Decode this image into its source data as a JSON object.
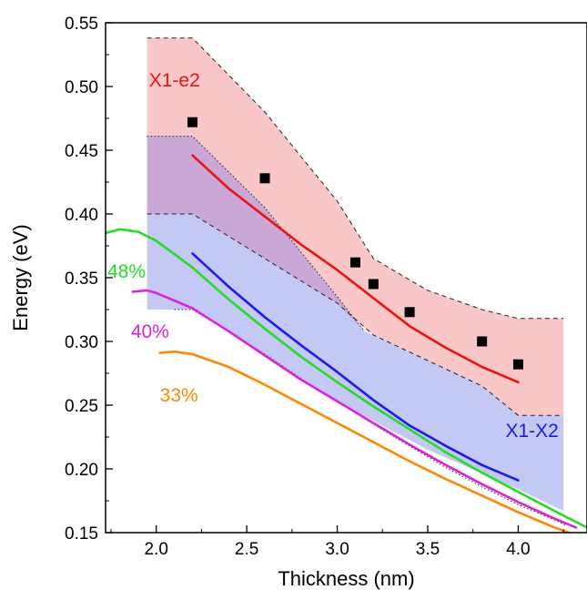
{
  "chart_data": {
    "type": "line",
    "title": "",
    "xlabel": "Thickness (nm)",
    "ylabel": "Energy (eV)",
    "xlim": [
      1.72,
      4.38
    ],
    "ylim": [
      0.15,
      0.55
    ],
    "xticks": [
      "2.0",
      "2.5",
      "3.0",
      "3.5",
      "4.0"
    ],
    "yticks": [
      "0.15",
      "0.20",
      "0.25",
      "0.30",
      "0.35",
      "0.40",
      "0.45",
      "0.50",
      "0.55"
    ],
    "grid": false,
    "legend": "none",
    "bands": [
      {
        "id": "x1-e2-band",
        "color": "#f9c7c7",
        "upper": [
          [
            1.95,
            0.538
          ],
          [
            2.2,
            0.538
          ],
          [
            2.6,
            0.48
          ],
          [
            3.0,
            0.41
          ],
          [
            3.2,
            0.365
          ],
          [
            3.5,
            0.34
          ],
          [
            3.8,
            0.325
          ],
          [
            4.0,
            0.318
          ],
          [
            4.25,
            0.318
          ]
        ],
        "lower": [
          [
            1.95,
            0.4
          ],
          [
            2.2,
            0.4
          ],
          [
            2.6,
            0.365
          ],
          [
            3.0,
            0.33
          ],
          [
            3.2,
            0.305
          ],
          [
            3.5,
            0.285
          ],
          [
            3.8,
            0.265
          ],
          [
            4.0,
            0.242
          ],
          [
            4.25,
            0.242
          ]
        ]
      },
      {
        "id": "x1-x2-band",
        "color": "#c4c8f5",
        "upper": [
          [
            1.95,
            0.461
          ],
          [
            2.2,
            0.461
          ],
          [
            2.6,
            0.405
          ],
          [
            3.0,
            0.335
          ],
          [
            3.15,
            0.308
          ],
          [
            3.5,
            0.285
          ],
          [
            3.8,
            0.265
          ],
          [
            4.0,
            0.242
          ],
          [
            4.25,
            0.242
          ]
        ],
        "lower": [
          [
            1.95,
            0.325
          ],
          [
            2.2,
            0.325
          ],
          [
            2.6,
            0.29
          ],
          [
            3.0,
            0.253
          ],
          [
            3.5,
            0.215
          ],
          [
            4.0,
            0.184
          ],
          [
            4.25,
            0.167
          ]
        ]
      },
      {
        "id": "overlap-band",
        "color": "#c9a8d8",
        "upper": [
          [
            1.95,
            0.461
          ],
          [
            2.2,
            0.461
          ],
          [
            2.6,
            0.405
          ],
          [
            3.0,
            0.335
          ],
          [
            3.15,
            0.308
          ]
        ],
        "lower": [
          [
            1.95,
            0.4
          ],
          [
            2.2,
            0.4
          ],
          [
            2.6,
            0.365
          ],
          [
            3.0,
            0.33
          ],
          [
            3.15,
            0.308
          ]
        ]
      }
    ],
    "series": [
      {
        "id": "x1-e2-line",
        "color": "#ee1111",
        "x": [
          2.2,
          2.4,
          2.6,
          2.8,
          3.0,
          3.2,
          3.4,
          3.6,
          3.8,
          4.0
        ],
        "y": [
          0.446,
          0.42,
          0.398,
          0.376,
          0.356,
          0.334,
          0.312,
          0.295,
          0.28,
          0.268
        ]
      },
      {
        "id": "x1-x2-line",
        "color": "#1a1aee",
        "x": [
          2.2,
          2.4,
          2.6,
          2.8,
          3.0,
          3.2,
          3.4,
          3.6,
          3.8,
          4.0
        ],
        "y": [
          0.369,
          0.343,
          0.319,
          0.297,
          0.276,
          0.254,
          0.234,
          0.218,
          0.203,
          0.191
        ]
      },
      {
        "id": "48pct-line",
        "color": "#22dd22",
        "x": [
          1.72,
          1.8,
          1.9,
          2.0,
          2.2,
          2.4,
          2.6,
          2.8,
          3.0,
          3.2,
          3.4,
          3.6,
          3.8,
          4.0,
          4.2,
          4.38
        ],
        "y": [
          0.385,
          0.388,
          0.386,
          0.379,
          0.358,
          0.333,
          0.31,
          0.288,
          0.268,
          0.249,
          0.231,
          0.213,
          0.197,
          0.182,
          0.167,
          0.154
        ]
      },
      {
        "id": "40pct-line",
        "color": "#dd22dd",
        "x": [
          1.87,
          1.95,
          2.0,
          2.2,
          2.4,
          2.6,
          2.8,
          3.0,
          3.2,
          3.4,
          3.6,
          3.8,
          4.0,
          4.2,
          4.32
        ],
        "y": [
          0.339,
          0.34,
          0.338,
          0.326,
          0.308,
          0.289,
          0.27,
          0.253,
          0.236,
          0.219,
          0.203,
          0.188,
          0.174,
          0.161,
          0.154
        ]
      },
      {
        "id": "33pct-line",
        "color": "#ff8800",
        "x": [
          2.02,
          2.1,
          2.2,
          2.4,
          2.6,
          2.8,
          3.0,
          3.2,
          3.4,
          3.6,
          3.8,
          4.0,
          4.2,
          4.3
        ],
        "y": [
          0.291,
          0.292,
          0.29,
          0.28,
          0.266,
          0.251,
          0.236,
          0.221,
          0.206,
          0.192,
          0.179,
          0.166,
          0.154,
          0.149
        ]
      }
    ],
    "dotted_boundary": {
      "x": [
        2.1,
        2.2,
        2.4,
        2.6,
        2.8,
        3.0,
        3.2,
        3.4,
        3.6,
        3.8,
        4.0,
        4.2,
        4.26
      ],
      "y": [
        0.325,
        0.325,
        0.308,
        0.29,
        0.271,
        0.253,
        0.235,
        0.218,
        0.201,
        0.186,
        0.172,
        0.16,
        0.156
      ]
    },
    "points": {
      "color": "#000000",
      "x": [
        2.2,
        2.6,
        3.1,
        3.2,
        3.4,
        3.8,
        4.0
      ],
      "y": [
        0.472,
        0.428,
        0.362,
        0.345,
        0.323,
        0.3,
        0.282
      ]
    },
    "annotations": [
      {
        "id": "label-x1-e2",
        "text": "X1-e2",
        "color": "#ee1111",
        "x": 1.96,
        "y": 0.5
      },
      {
        "id": "label-x1-x2",
        "text": "X1-X2",
        "color": "#1a1aee",
        "x": 3.93,
        "y": 0.225
      },
      {
        "id": "label-48",
        "text": "48%",
        "color": "#22dd22",
        "x": 1.73,
        "y": 0.35
      },
      {
        "id": "label-40",
        "text": "40%",
        "color": "#dd22dd",
        "x": 1.86,
        "y": 0.303
      },
      {
        "id": "label-33",
        "text": "33%",
        "color": "#ff8800",
        "x": 2.02,
        "y": 0.253
      }
    ]
  }
}
